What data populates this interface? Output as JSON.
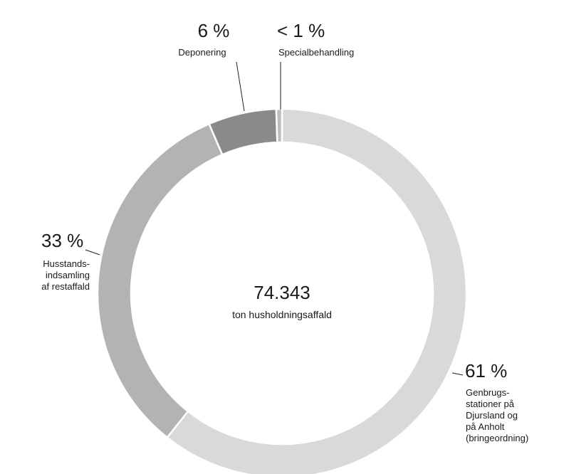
{
  "chart_data": {
    "type": "pie",
    "variant": "donut",
    "center": {
      "value": "74.343",
      "label": "ton husholdningsaffald"
    },
    "slices": [
      {
        "name": "Genbrugsstationer på Djursland og på Anholt (bringeordning)",
        "value": 61,
        "display": "61 %",
        "label_lines": [
          "Genbrugs-",
          "stationer på",
          "Djursland og",
          "på Anholt",
          "(bringeordning)"
        ],
        "color": "#d9d9d9"
      },
      {
        "name": "Husstandsindsamling af restaffald",
        "value": 33,
        "display": "33 %",
        "label_lines": [
          "Husstands-",
          "indsamling",
          "af restaffald"
        ],
        "color": "#b3b3b3"
      },
      {
        "name": "Deponering",
        "value": 6,
        "display": "6 %",
        "label_lines": [
          "Deponering"
        ],
        "color": "#8a8a8a"
      },
      {
        "name": "Specialbehandling",
        "value": 0.5,
        "display": "< 1 %",
        "label_lines": [
          "Specialbehandling"
        ],
        "color": "#bdbdbd"
      }
    ]
  }
}
